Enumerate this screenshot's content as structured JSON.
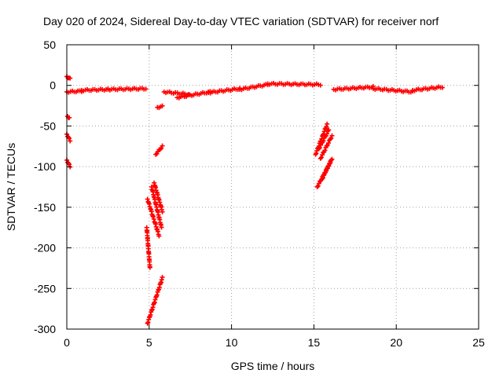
{
  "chart_data": {
    "type": "scatter",
    "title": "Day 020 of 2024, Sidereal Day-to-day VTEC variation (SDTVAR) for receiver norf",
    "xlabel": "GPS time / hours",
    "ylabel": "SDTVAR / TECUs",
    "xlim": [
      0,
      25
    ],
    "ylim": [
      -300,
      50
    ],
    "xticks": [
      0,
      5,
      10,
      15,
      20,
      25
    ],
    "yticks": [
      50,
      0,
      -50,
      -100,
      -150,
      -200,
      -250,
      -300
    ],
    "grid": true,
    "legend": "none",
    "marker": "plus",
    "color": "#ff0000",
    "segments": [
      {
        "x": [
          0.0,
          0.2
        ],
        "y": [
          11,
          8
        ]
      },
      {
        "x": [
          0.05,
          0.15
        ],
        "y": [
          -38,
          -40
        ]
      },
      {
        "x": [
          0.0,
          0.2
        ],
        "y": [
          -60,
          -68
        ]
      },
      {
        "x": [
          0.0,
          0.2
        ],
        "y": [
          -92,
          -100
        ]
      },
      {
        "x": [
          0.0,
          0.9
        ],
        "y": [
          -8,
          -7
        ]
      },
      {
        "x": [
          0.9,
          2.5
        ],
        "y": [
          -6,
          -5
        ]
      },
      {
        "x": [
          2.5,
          4.8
        ],
        "y": [
          -5,
          -4
        ]
      },
      {
        "x": [
          4.85,
          5.05
        ],
        "y": [
          -175,
          -225
        ]
      },
      {
        "x": [
          4.9,
          5.6
        ],
        "y": [
          -140,
          -185
        ]
      },
      {
        "x": [
          5.15,
          5.75
        ],
        "y": [
          -125,
          -175
        ]
      },
      {
        "x": [
          5.3,
          5.8
        ],
        "y": [
          -120,
          -155
        ]
      },
      {
        "x": [
          4.9,
          5.8
        ],
        "y": [
          -293,
          -237
        ]
      },
      {
        "x": [
          5.4,
          5.8
        ],
        "y": [
          -85,
          -75
        ]
      },
      {
        "x": [
          5.5,
          5.8
        ],
        "y": [
          -27,
          -26
        ]
      },
      {
        "x": [
          5.9,
          7.4
        ],
        "y": [
          -8,
          -11
        ]
      },
      {
        "x": [
          6.7,
          8.7
        ],
        "y": [
          -15,
          -8
        ]
      },
      {
        "x": [
          8.6,
          10.5
        ],
        "y": [
          -9,
          -4
        ]
      },
      {
        "x": [
          10.5,
          12.2
        ],
        "y": [
          -5,
          1
        ]
      },
      {
        "x": [
          12.2,
          15.4
        ],
        "y": [
          2,
          1
        ]
      },
      {
        "x": [
          15.1,
          15.8
        ],
        "y": [
          -85,
          -48
        ]
      },
      {
        "x": [
          15.3,
          15.9
        ],
        "y": [
          -78,
          -55
        ]
      },
      {
        "x": [
          15.4,
          16.1
        ],
        "y": [
          -90,
          -62
        ]
      },
      {
        "x": [
          15.2,
          16.0
        ],
        "y": [
          -125,
          -95
        ]
      },
      {
        "x": [
          15.5,
          16.1
        ],
        "y": [
          -115,
          -90
        ]
      },
      {
        "x": [
          16.2,
          18.6
        ],
        "y": [
          -5,
          -2
        ]
      },
      {
        "x": [
          18.6,
          21.0
        ],
        "y": [
          -4,
          -8
        ]
      },
      {
        "x": [
          21.0,
          22.8
        ],
        "y": [
          -6,
          -2
        ]
      }
    ]
  }
}
